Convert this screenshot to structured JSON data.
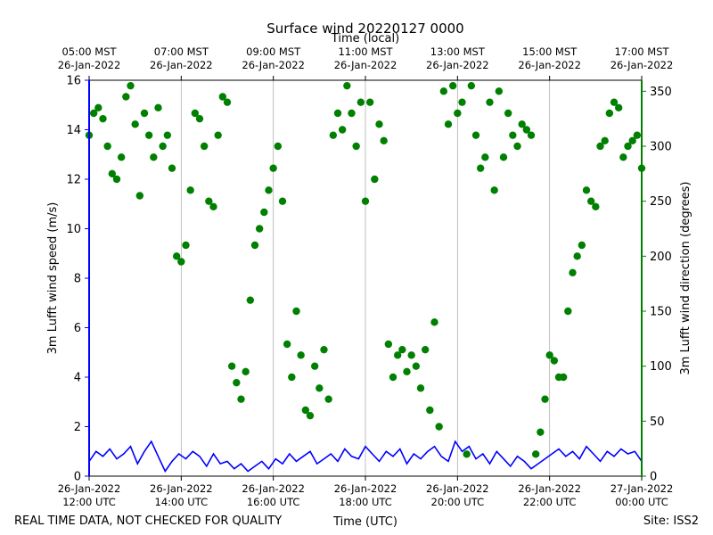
{
  "chart_data": {
    "type": "line+scatter",
    "title": "Surface wind 20220127 0000",
    "top_axis_label": "Time (local)",
    "xlabel": "Time (UTC)",
    "ylabel_left": "3m Lufft wind speed (m/s)",
    "ylabel_right": "3m Lufft wind direction (degrees)",
    "footer_left": "REAL TIME DATA, NOT CHECKED FOR QUALITY",
    "footer_right": "Site: ISS2",
    "x_range_hours_utc": [
      12,
      24
    ],
    "ylim_left": [
      0,
      16
    ],
    "ylim_right": [
      0,
      360
    ],
    "left_ticks": [
      "0",
      "2",
      "4",
      "6",
      "8",
      "10",
      "12",
      "14",
      "16"
    ],
    "right_ticks": [
      "0",
      "50",
      "100",
      "150",
      "200",
      "250",
      "300",
      "350"
    ],
    "bottom_ticks": [
      {
        "hour": 12,
        "line1": "26-Jan-2022",
        "line2": "12:00 UTC"
      },
      {
        "hour": 14,
        "line1": "26-Jan-2022",
        "line2": "14:00 UTC"
      },
      {
        "hour": 16,
        "line1": "26-Jan-2022",
        "line2": "16:00 UTC"
      },
      {
        "hour": 18,
        "line1": "26-Jan-2022",
        "line2": "18:00 UTC"
      },
      {
        "hour": 20,
        "line1": "26-Jan-2022",
        "line2": "20:00 UTC"
      },
      {
        "hour": 22,
        "line1": "26-Jan-2022",
        "line2": "22:00 UTC"
      },
      {
        "hour": 24,
        "line1": "27-Jan-2022",
        "line2": "00:00 UTC"
      }
    ],
    "top_ticks": [
      {
        "hour": 12,
        "line1": "05:00 MST",
        "line2": "26-Jan-2022"
      },
      {
        "hour": 14,
        "line1": "07:00 MST",
        "line2": "26-Jan-2022"
      },
      {
        "hour": 16,
        "line1": "09:00 MST",
        "line2": "26-Jan-2022"
      },
      {
        "hour": 18,
        "line1": "11:00 MST",
        "line2": "26-Jan-2022"
      },
      {
        "hour": 20,
        "line1": "13:00 MST",
        "line2": "26-Jan-2022"
      },
      {
        "hour": 22,
        "line1": "15:00 MST",
        "line2": "26-Jan-2022"
      },
      {
        "hour": 24,
        "line1": "17:00 MST",
        "line2": "26-Jan-2022"
      }
    ],
    "colors": {
      "speed": "#0000ff",
      "direction": "#008000",
      "grid": "#b0b0b0",
      "axis": "#000000"
    },
    "series": [
      {
        "name": "3m Lufft wind speed (m/s)",
        "style": "line",
        "x": [
          12.0,
          12.15,
          12.3,
          12.45,
          12.6,
          12.75,
          12.9,
          13.05,
          13.2,
          13.35,
          13.5,
          13.65,
          13.8,
          13.95,
          14.1,
          14.25,
          14.4,
          14.55,
          14.7,
          14.85,
          15.0,
          15.15,
          15.3,
          15.45,
          15.6,
          15.75,
          15.9,
          16.05,
          16.2,
          16.35,
          16.5,
          16.65,
          16.8,
          16.95,
          17.1,
          17.25,
          17.4,
          17.55,
          17.7,
          17.85,
          18.0,
          18.15,
          18.3,
          18.45,
          18.6,
          18.75,
          18.9,
          19.05,
          19.2,
          19.35,
          19.5,
          19.65,
          19.8,
          19.95,
          20.1,
          20.25,
          20.4,
          20.55,
          20.7,
          20.85,
          21.0,
          21.15,
          21.3,
          21.45,
          21.6,
          21.75,
          21.9,
          22.05,
          22.2,
          22.35,
          22.5,
          22.65,
          22.8,
          22.95,
          23.1,
          23.25,
          23.4,
          23.55,
          23.7,
          23.85,
          24.0
        ],
        "values": [
          0.6,
          1.0,
          0.8,
          1.1,
          0.7,
          0.9,
          1.2,
          0.5,
          1.0,
          1.4,
          0.8,
          0.2,
          0.6,
          0.9,
          0.7,
          1.0,
          0.8,
          0.4,
          0.9,
          0.5,
          0.6,
          0.3,
          0.5,
          0.2,
          0.4,
          0.6,
          0.3,
          0.7,
          0.5,
          0.9,
          0.6,
          0.8,
          1.0,
          0.5,
          0.7,
          0.9,
          0.6,
          1.1,
          0.8,
          0.7,
          1.2,
          0.9,
          0.6,
          1.0,
          0.8,
          1.1,
          0.5,
          0.9,
          0.7,
          1.0,
          1.2,
          0.8,
          0.6,
          1.4,
          1.0,
          1.2,
          0.7,
          0.9,
          0.5,
          1.0,
          0.7,
          0.4,
          0.8,
          0.6,
          0.3,
          0.5,
          0.7,
          0.9,
          1.1,
          0.8,
          1.0,
          0.7,
          1.2,
          0.9,
          0.6,
          1.0,
          0.8,
          1.1,
          0.9,
          1.0,
          0.6
        ]
      },
      {
        "name": "3m Lufft wind direction (degrees)",
        "style": "scatter",
        "x": [
          12.0,
          12.1,
          12.2,
          12.3,
          12.4,
          12.5,
          12.6,
          12.7,
          12.8,
          12.9,
          13.0,
          13.1,
          13.2,
          13.3,
          13.4,
          13.5,
          13.6,
          13.7,
          13.8,
          13.9,
          14.0,
          14.1,
          14.2,
          14.3,
          14.4,
          14.5,
          14.6,
          14.7,
          14.8,
          14.9,
          15.0,
          15.1,
          15.2,
          15.3,
          15.4,
          15.5,
          15.6,
          15.7,
          15.8,
          15.9,
          16.0,
          16.1,
          16.2,
          16.3,
          16.4,
          16.5,
          16.6,
          16.7,
          16.8,
          16.9,
          17.0,
          17.1,
          17.2,
          17.3,
          17.4,
          17.5,
          17.6,
          17.7,
          17.8,
          17.9,
          18.0,
          18.1,
          18.2,
          18.3,
          18.4,
          18.5,
          18.6,
          18.7,
          18.8,
          18.9,
          19.0,
          19.1,
          19.2,
          19.3,
          19.4,
          19.5,
          19.6,
          19.7,
          19.8,
          19.9,
          20.0,
          20.1,
          20.2,
          20.3,
          20.4,
          20.5,
          20.6,
          20.7,
          20.8,
          20.9,
          21.0,
          21.1,
          21.2,
          21.3,
          21.4,
          21.5,
          21.6,
          21.7,
          21.8,
          21.9,
          22.0,
          22.1,
          22.2,
          22.3,
          22.4,
          22.5,
          22.6,
          22.7,
          22.8,
          22.9,
          23.0,
          23.1,
          23.2,
          23.3,
          23.4,
          23.5,
          23.6,
          23.7,
          23.8,
          23.9,
          24.0
        ],
        "values": [
          310,
          330,
          335,
          325,
          300,
          275,
          270,
          290,
          345,
          355,
          320,
          255,
          330,
          310,
          290,
          335,
          300,
          310,
          280,
          200,
          195,
          210,
          260,
          330,
          325,
          300,
          250,
          245,
          310,
          345,
          340,
          100,
          85,
          70,
          95,
          160,
          210,
          225,
          240,
          260,
          280,
          300,
          250,
          120,
          90,
          150,
          110,
          60,
          55,
          100,
          80,
          115,
          70,
          310,
          330,
          315,
          355,
          330,
          300,
          340,
          250,
          340,
          270,
          320,
          305,
          120,
          90,
          110,
          115,
          95,
          110,
          100,
          80,
          115,
          60,
          140,
          45,
          350,
          320,
          355,
          330,
          340,
          20,
          355,
          310,
          280,
          290,
          340,
          260,
          350,
          290,
          330,
          310,
          300,
          320,
          315,
          310,
          20,
          40,
          70,
          110,
          105,
          90,
          90,
          150,
          185,
          200,
          210,
          260,
          250,
          245,
          300,
          305,
          330,
          340,
          335,
          290,
          300,
          305,
          310,
          280
        ]
      }
    ]
  }
}
